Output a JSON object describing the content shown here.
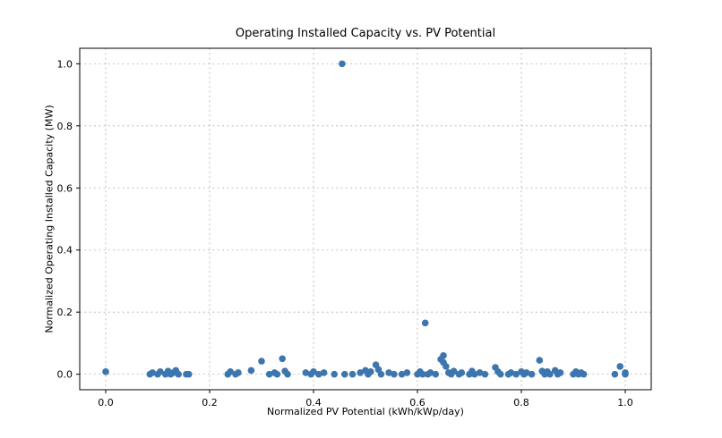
{
  "chart_data": {
    "type": "scatter",
    "title": "Operating Installed Capacity vs. PV Potential",
    "xlabel": "Normalized PV Potential (kWh/kWp/day)",
    "ylabel": "Normalized Operating Installed Capacity (MW)",
    "xlim": [
      -0.05,
      1.05
    ],
    "ylim": [
      -0.05,
      1.05
    ],
    "xticks": [
      0.0,
      0.2,
      0.4,
      0.6,
      0.8,
      1.0
    ],
    "yticks": [
      0.0,
      0.2,
      0.4,
      0.6,
      0.8,
      1.0
    ],
    "grid": true,
    "legend": false,
    "point_color": "#3d76af",
    "grid_color": "#b0b0b0",
    "spine_color": "#000000",
    "points": [
      [
        0.0,
        0.008
      ],
      [
        0.085,
        0.0
      ],
      [
        0.09,
        0.005
      ],
      [
        0.1,
        0.0
      ],
      [
        0.105,
        0.008
      ],
      [
        0.115,
        0.0
      ],
      [
        0.12,
        0.01
      ],
      [
        0.125,
        0.0
      ],
      [
        0.13,
        0.005
      ],
      [
        0.135,
        0.012
      ],
      [
        0.14,
        0.0
      ],
      [
        0.155,
        0.0
      ],
      [
        0.16,
        0.0
      ],
      [
        0.235,
        0.0
      ],
      [
        0.24,
        0.008
      ],
      [
        0.25,
        0.0
      ],
      [
        0.255,
        0.005
      ],
      [
        0.28,
        0.012
      ],
      [
        0.3,
        0.042
      ],
      [
        0.315,
        0.0
      ],
      [
        0.325,
        0.005
      ],
      [
        0.33,
        0.0
      ],
      [
        0.34,
        0.05
      ],
      [
        0.345,
        0.01
      ],
      [
        0.35,
        0.0
      ],
      [
        0.385,
        0.005
      ],
      [
        0.395,
        0.0
      ],
      [
        0.4,
        0.008
      ],
      [
        0.41,
        0.0
      ],
      [
        0.42,
        0.005
      ],
      [
        0.44,
        0.0
      ],
      [
        0.455,
        1.0
      ],
      [
        0.46,
        0.0
      ],
      [
        0.475,
        0.0
      ],
      [
        0.49,
        0.005
      ],
      [
        0.5,
        0.012
      ],
      [
        0.505,
        0.0
      ],
      [
        0.51,
        0.008
      ],
      [
        0.52,
        0.03
      ],
      [
        0.525,
        0.015
      ],
      [
        0.53,
        0.0
      ],
      [
        0.545,
        0.005
      ],
      [
        0.555,
        0.0
      ],
      [
        0.57,
        0.0
      ],
      [
        0.58,
        0.005
      ],
      [
        0.6,
        0.0
      ],
      [
        0.605,
        0.008
      ],
      [
        0.61,
        0.0
      ],
      [
        0.615,
        0.165
      ],
      [
        0.62,
        0.0
      ],
      [
        0.625,
        0.005
      ],
      [
        0.635,
        0.0
      ],
      [
        0.645,
        0.048
      ],
      [
        0.65,
        0.06
      ],
      [
        0.65,
        0.038
      ],
      [
        0.655,
        0.025
      ],
      [
        0.66,
        0.005
      ],
      [
        0.665,
        0.0
      ],
      [
        0.67,
        0.01
      ],
      [
        0.68,
        0.0
      ],
      [
        0.685,
        0.005
      ],
      [
        0.7,
        0.0
      ],
      [
        0.705,
        0.01
      ],
      [
        0.71,
        0.0
      ],
      [
        0.72,
        0.005
      ],
      [
        0.73,
        0.0
      ],
      [
        0.75,
        0.022
      ],
      [
        0.755,
        0.008
      ],
      [
        0.76,
        0.0
      ],
      [
        0.775,
        0.0
      ],
      [
        0.78,
        0.005
      ],
      [
        0.79,
        0.0
      ],
      [
        0.8,
        0.008
      ],
      [
        0.805,
        0.0
      ],
      [
        0.81,
        0.005
      ],
      [
        0.82,
        0.0
      ],
      [
        0.835,
        0.045
      ],
      [
        0.84,
        0.01
      ],
      [
        0.845,
        0.0
      ],
      [
        0.85,
        0.008
      ],
      [
        0.855,
        0.0
      ],
      [
        0.865,
        0.012
      ],
      [
        0.87,
        0.0
      ],
      [
        0.875,
        0.005
      ],
      [
        0.9,
        0.0
      ],
      [
        0.905,
        0.008
      ],
      [
        0.91,
        0.0
      ],
      [
        0.915,
        0.005
      ],
      [
        0.92,
        0.0
      ],
      [
        0.98,
        0.0
      ],
      [
        0.99,
        0.025
      ],
      [
        1.0,
        0.005
      ],
      [
        1.0,
        0.0
      ]
    ]
  }
}
